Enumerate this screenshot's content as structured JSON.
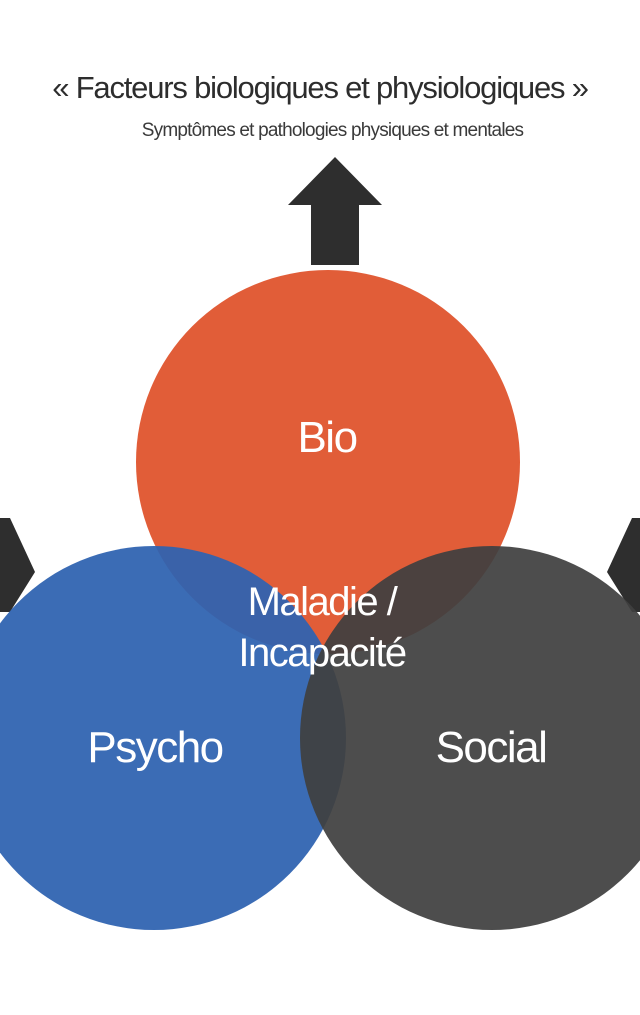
{
  "header": {
    "title": "« Facteurs biologiques et physiologiques »",
    "subtitle": "Symptômes et pathologies physiques et mentales"
  },
  "circles": {
    "bio": {
      "label": "Bio",
      "color": "#e05a34"
    },
    "psycho": {
      "label": "Psycho",
      "color": "#2f63b0"
    },
    "social": {
      "label": "Social",
      "color": "#3f3f3f"
    }
  },
  "center": {
    "line1": "Maladie /",
    "line2": "Incapacité"
  },
  "arrow_color": "#2e2e2e",
  "icons": {
    "up": "arrow-up-icon",
    "left": "arrow-left-icon",
    "right": "arrow-right-icon"
  }
}
